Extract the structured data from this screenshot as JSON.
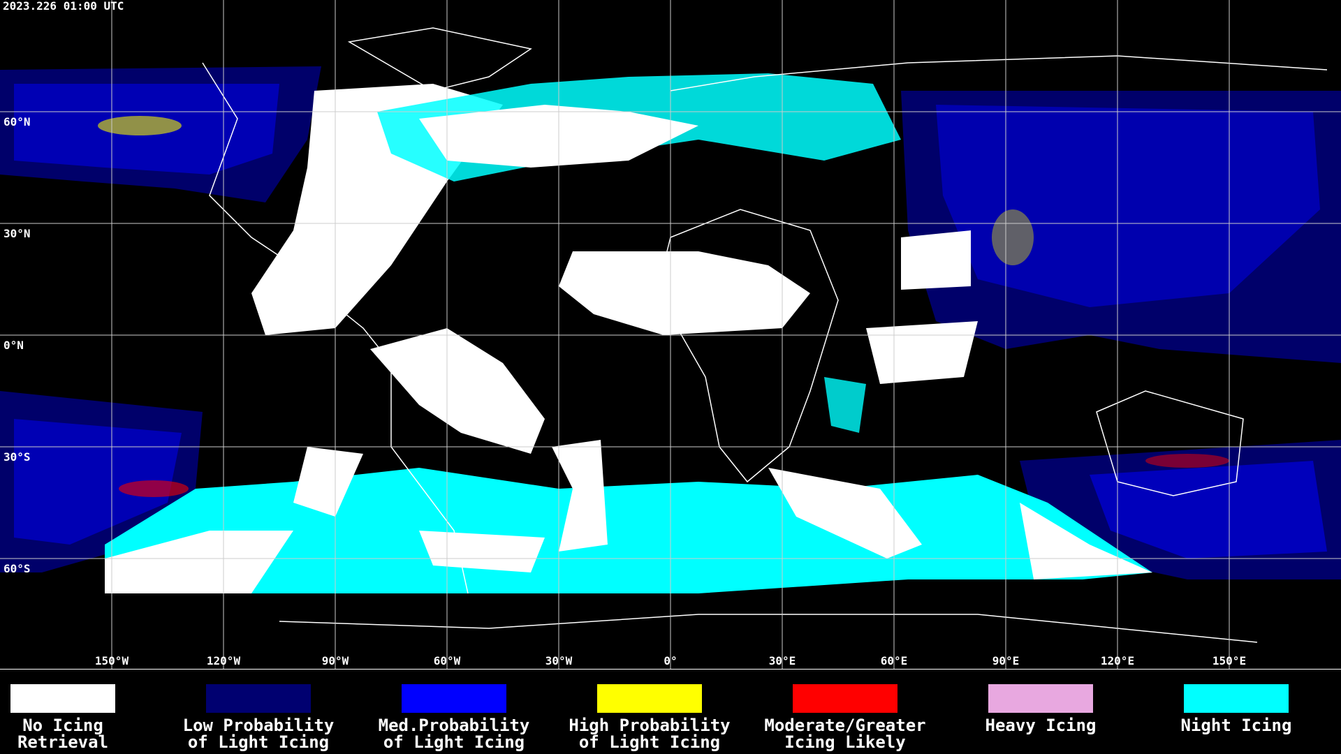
{
  "header": {
    "title": "2023.226 01:00 UTC"
  },
  "map": {
    "lat_labels": [
      "60°N",
      "30°N",
      "0°N",
      "30°S",
      "60°S"
    ],
    "lon_labels": [
      "150°W",
      "120°W",
      "90°W",
      "60°W",
      "30°W",
      "0°",
      "30°E",
      "60°E",
      "90°E",
      "120°E",
      "150°E"
    ]
  },
  "legend": [
    {
      "lines": [
        "No Icing",
        "Retrieval"
      ],
      "color": "#ffffff"
    },
    {
      "lines": [
        "Low Probability",
        "of Light Icing"
      ],
      "color": "#000070"
    },
    {
      "lines": [
        "Med.Probability",
        "of Light Icing"
      ],
      "color": "#0000ff"
    },
    {
      "lines": [
        "High Probability",
        "of Light Icing"
      ],
      "color": "#ffff00"
    },
    {
      "lines": [
        "Moderate/Greater",
        "Icing Likely"
      ],
      "color": "#ff0000"
    },
    {
      "lines": [
        "Heavy Icing"
      ],
      "color": "#e8a8e0"
    },
    {
      "lines": [
        "Night Icing"
      ],
      "color": "#00ffff"
    }
  ]
}
